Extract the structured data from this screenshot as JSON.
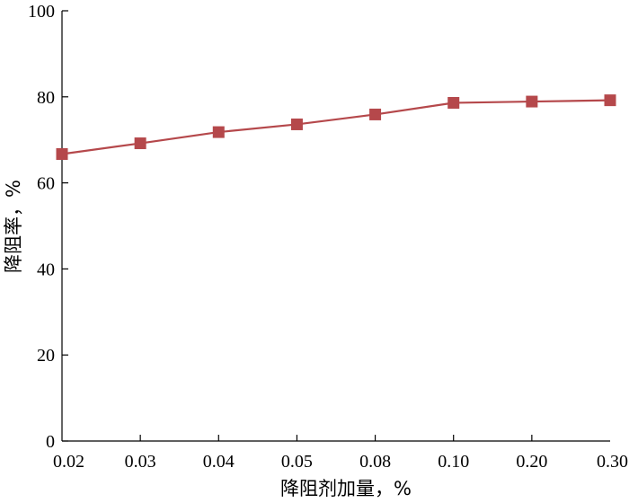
{
  "chart_data": {
    "type": "line",
    "categories": [
      "0.02",
      "0.03",
      "0.04",
      "0.05",
      "0.08",
      "0.10",
      "0.20",
      "0.30"
    ],
    "series": [
      {
        "values": [
          66.7,
          69.2,
          71.8,
          73.6,
          75.9,
          78.6,
          78.9,
          79.2
        ],
        "color": "#b5484b",
        "marker": "square"
      }
    ],
    "xlabel": "降阻剂加量，%",
    "ylabel": "降阻率，%",
    "ylim": [
      0,
      100
    ],
    "yticks": [
      "0",
      "20",
      "40",
      "60",
      "80",
      "100"
    ],
    "grid": false,
    "legend": "none"
  }
}
